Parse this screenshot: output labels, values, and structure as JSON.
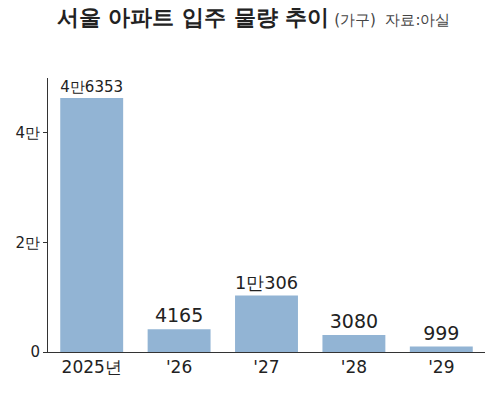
{
  "chart_data": {
    "type": "bar",
    "title": "서울 아파트 입주 물량 추이",
    "subtitle": "(가구)",
    "source": "자료:아실",
    "categories": [
      "2025년",
      "'26",
      "'27",
      "'28",
      "'29"
    ],
    "values": [
      46353,
      4165,
      10306,
      3080,
      999
    ],
    "value_labels": [
      "4만6353",
      "4165",
      "1만306",
      "3080",
      "999"
    ],
    "data_labels": true,
    "color": "#92b4d4",
    "ylim": [
      0,
      50000
    ],
    "yticks": [
      0,
      {
        "value": 20000,
        "label": "2만"
      },
      {
        "value": 40000,
        "label": "4만"
      }
    ],
    "grid": false
  }
}
